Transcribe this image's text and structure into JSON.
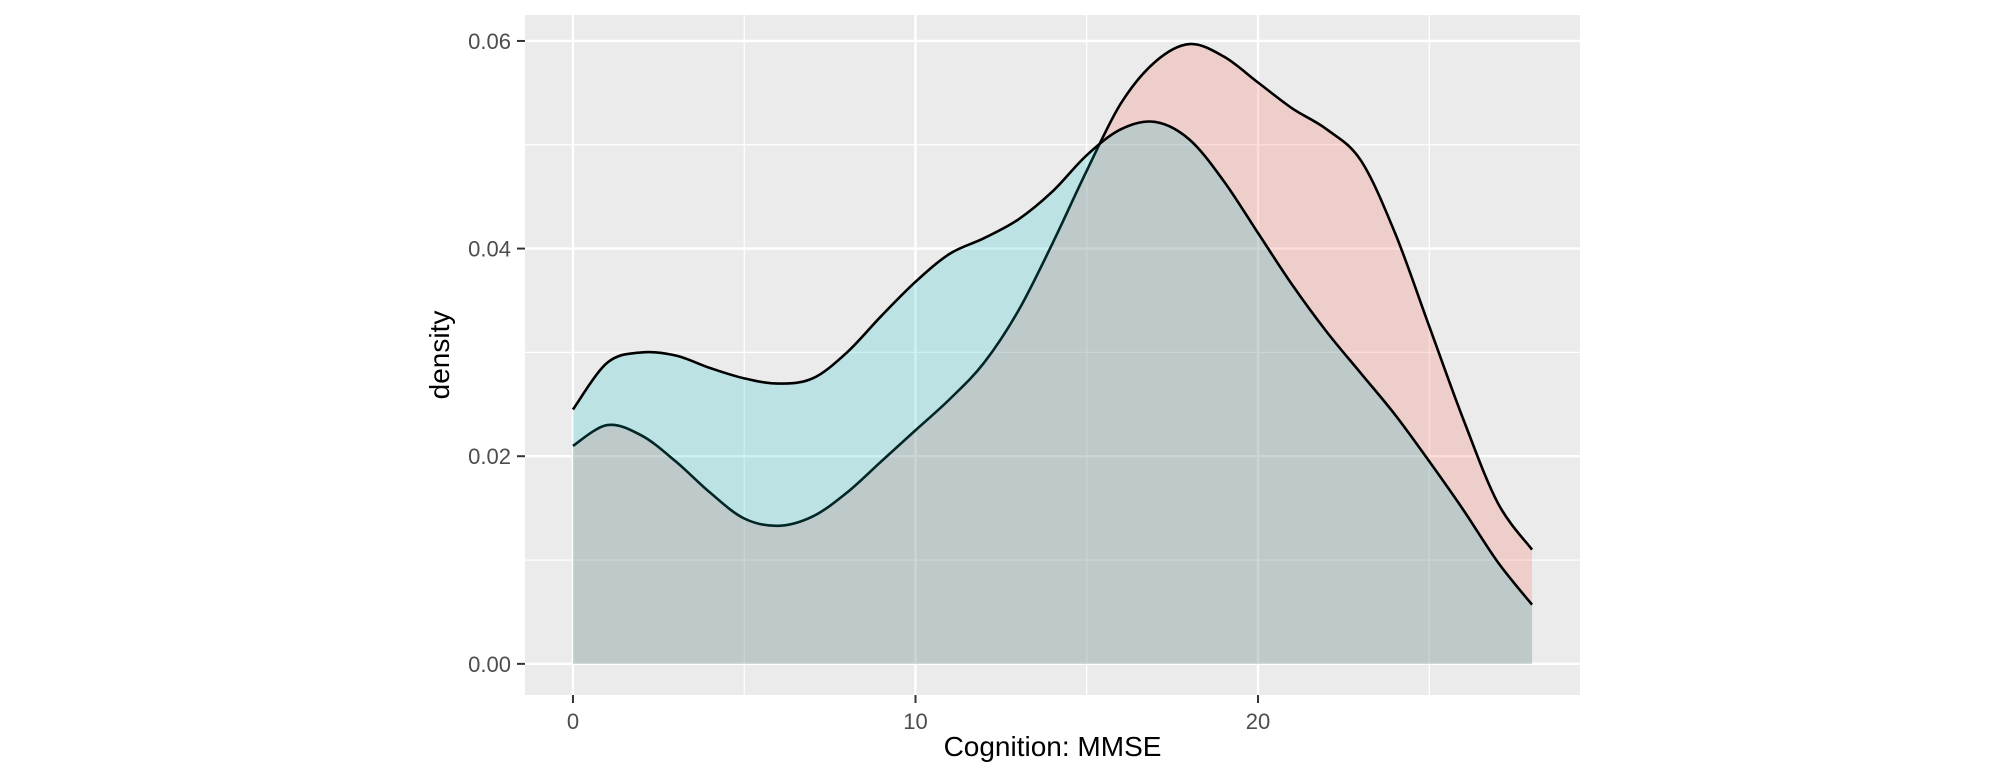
{
  "chart_data": {
    "type": "area",
    "title": "",
    "xlabel": "Cognition: MMSE",
    "ylabel": "density",
    "xlim": [
      -1.4,
      29.4
    ],
    "ylim": [
      -0.003,
      0.0625
    ],
    "x_ticks": [
      0,
      10,
      20
    ],
    "x_tick_labels": [
      "0",
      "10",
      "20"
    ],
    "x_minor_gridlines": [
      5,
      15,
      25
    ],
    "y_ticks": [
      0.0,
      0.02,
      0.04,
      0.06
    ],
    "y_tick_labels": [
      "0.00",
      "0.02",
      "0.04",
      "0.06"
    ],
    "y_minor_gridlines": [
      0.01,
      0.03,
      0.05
    ],
    "grid": true,
    "legend": "none",
    "panel_background": "#ebebeb",
    "gridline_color": "#ffffff",
    "line_color": "#000000",
    "series": [
      {
        "fill_color": "#f8766d",
        "fill_opacity": 0.25,
        "x": [
          0,
          1,
          2,
          3,
          4,
          5,
          6,
          7,
          8,
          9,
          10,
          11,
          12,
          13,
          14,
          15,
          16,
          17,
          18,
          19,
          20,
          21,
          22,
          23,
          24,
          25,
          26,
          27,
          28
        ],
        "y": [
          0.021,
          0.023,
          0.022,
          0.0195,
          0.0165,
          0.014,
          0.0133,
          0.0142,
          0.0165,
          0.0195,
          0.0225,
          0.0255,
          0.029,
          0.034,
          0.0405,
          0.0475,
          0.054,
          0.058,
          0.0597,
          0.0585,
          0.056,
          0.0535,
          0.0515,
          0.0485,
          0.0415,
          0.0325,
          0.0235,
          0.0155,
          0.011
        ]
      },
      {
        "fill_color": "#00bfc4",
        "fill_opacity": 0.2,
        "x": [
          0,
          1,
          2,
          3,
          4,
          5,
          6,
          7,
          8,
          9,
          10,
          11,
          12,
          13,
          14,
          15,
          16,
          17,
          18,
          19,
          20,
          21,
          22,
          23,
          24,
          25,
          26,
          27,
          28
        ],
        "y": [
          0.0245,
          0.029,
          0.03,
          0.0297,
          0.0285,
          0.0275,
          0.027,
          0.0275,
          0.03,
          0.0335,
          0.0368,
          0.0395,
          0.041,
          0.0428,
          0.0455,
          0.049,
          0.0515,
          0.0522,
          0.0505,
          0.0465,
          0.0415,
          0.0365,
          0.032,
          0.028,
          0.024,
          0.0195,
          0.0148,
          0.0098,
          0.0057
        ]
      }
    ]
  }
}
